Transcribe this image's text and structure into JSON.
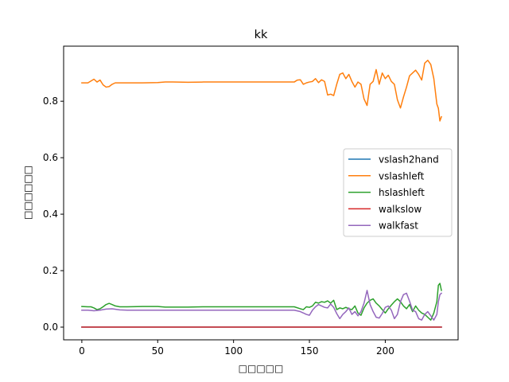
{
  "chart_data": {
    "type": "line",
    "title": "kk",
    "xlabel": "□□□□□",
    "ylabel": "□□□□□□",
    "xlim": [
      -12,
      248
    ],
    "ylim": [
      -0.045,
      0.995
    ],
    "xticks": [
      0,
      50,
      100,
      150,
      200
    ],
    "yticks": [
      0.0,
      0.2,
      0.4,
      0.6,
      0.8
    ],
    "ytick_labels": [
      "0.0",
      "0.2",
      "0.4",
      "0.6",
      "0.8"
    ],
    "legend_position": "center-right",
    "grid": false,
    "series": [
      {
        "name": "vslash2hand",
        "color": "#1f77b4",
        "x": [
          0,
          237
        ],
        "y": [
          0.0,
          0.0
        ]
      },
      {
        "name": "vslashleft",
        "color": "#ff7f0e",
        "x": [
          0,
          4,
          8,
          10,
          12,
          14,
          16,
          18,
          20,
          22,
          25,
          30,
          40,
          50,
          55,
          60,
          70,
          80,
          90,
          100,
          110,
          120,
          130,
          140,
          142,
          144,
          146,
          148,
          150,
          152,
          154,
          156,
          158,
          160,
          162,
          164,
          166,
          168,
          170,
          172,
          174,
          176,
          178,
          180,
          182,
          184,
          186,
          188,
          190,
          192,
          194,
          196,
          198,
          200,
          202,
          204,
          206,
          208,
          210,
          212,
          214,
          216,
          218,
          220,
          222,
          224,
          226,
          228,
          230,
          232,
          234,
          235,
          236,
          237
        ],
        "y": [
          0.865,
          0.865,
          0.878,
          0.868,
          0.875,
          0.858,
          0.85,
          0.852,
          0.86,
          0.865,
          0.865,
          0.865,
          0.865,
          0.866,
          0.868,
          0.868,
          0.867,
          0.868,
          0.868,
          0.868,
          0.868,
          0.868,
          0.868,
          0.868,
          0.875,
          0.876,
          0.86,
          0.865,
          0.868,
          0.87,
          0.88,
          0.866,
          0.876,
          0.87,
          0.822,
          0.825,
          0.82,
          0.86,
          0.895,
          0.9,
          0.88,
          0.895,
          0.87,
          0.85,
          0.868,
          0.86,
          0.808,
          0.785,
          0.86,
          0.87,
          0.912,
          0.86,
          0.9,
          0.88,
          0.892,
          0.87,
          0.86,
          0.805,
          0.776,
          0.815,
          0.85,
          0.89,
          0.9,
          0.91,
          0.895,
          0.875,
          0.935,
          0.945,
          0.93,
          0.88,
          0.79,
          0.775,
          0.73,
          0.745
        ]
      },
      {
        "name": "hslashleft",
        "color": "#2ca02c",
        "x": [
          0,
          4,
          6,
          8,
          10,
          12,
          14,
          16,
          18,
          20,
          22,
          25,
          30,
          40,
          50,
          55,
          60,
          70,
          80,
          90,
          100,
          110,
          120,
          130,
          140,
          144,
          146,
          148,
          150,
          152,
          154,
          156,
          158,
          160,
          162,
          164,
          166,
          168,
          170,
          172,
          174,
          176,
          178,
          180,
          182,
          184,
          186,
          188,
          190,
          192,
          194,
          196,
          198,
          200,
          202,
          204,
          206,
          208,
          210,
          212,
          214,
          216,
          218,
          220,
          222,
          224,
          226,
          228,
          230,
          232,
          234,
          235,
          236,
          237
        ],
        "y": [
          0.073,
          0.072,
          0.072,
          0.068,
          0.062,
          0.065,
          0.072,
          0.08,
          0.084,
          0.08,
          0.075,
          0.072,
          0.072,
          0.073,
          0.073,
          0.071,
          0.071,
          0.071,
          0.072,
          0.072,
          0.072,
          0.072,
          0.072,
          0.072,
          0.072,
          0.065,
          0.062,
          0.072,
          0.07,
          0.075,
          0.088,
          0.085,
          0.09,
          0.088,
          0.093,
          0.085,
          0.095,
          0.062,
          0.068,
          0.065,
          0.07,
          0.065,
          0.062,
          0.075,
          0.05,
          0.042,
          0.068,
          0.085,
          0.095,
          0.1,
          0.085,
          0.075,
          0.062,
          0.05,
          0.065,
          0.078,
          0.09,
          0.1,
          0.09,
          0.075,
          0.065,
          0.08,
          0.055,
          0.075,
          0.06,
          0.05,
          0.045,
          0.035,
          0.025,
          0.05,
          0.09,
          0.148,
          0.155,
          0.13
        ]
      },
      {
        "name": "walkslow",
        "color": "#d62728",
        "x": [
          0,
          237
        ],
        "y": [
          0.0,
          0.0
        ]
      },
      {
        "name": "walkfast",
        "color": "#9467bd",
        "x": [
          0,
          4,
          8,
          12,
          16,
          20,
          25,
          30,
          40,
          50,
          60,
          70,
          80,
          90,
          100,
          110,
          120,
          130,
          140,
          144,
          148,
          150,
          152,
          154,
          156,
          158,
          160,
          162,
          164,
          166,
          168,
          170,
          172,
          174,
          176,
          178,
          180,
          182,
          184,
          186,
          188,
          190,
          192,
          194,
          196,
          198,
          200,
          202,
          204,
          206,
          208,
          210,
          212,
          214,
          216,
          218,
          220,
          222,
          224,
          226,
          228,
          230,
          232,
          234,
          235,
          236,
          237
        ],
        "y": [
          0.06,
          0.06,
          0.058,
          0.06,
          0.064,
          0.065,
          0.061,
          0.06,
          0.06,
          0.06,
          0.06,
          0.06,
          0.06,
          0.06,
          0.06,
          0.06,
          0.06,
          0.06,
          0.06,
          0.055,
          0.045,
          0.042,
          0.06,
          0.072,
          0.08,
          0.075,
          0.07,
          0.068,
          0.082,
          0.07,
          0.048,
          0.03,
          0.045,
          0.055,
          0.068,
          0.045,
          0.055,
          0.04,
          0.055,
          0.085,
          0.13,
          0.08,
          0.055,
          0.035,
          0.032,
          0.048,
          0.07,
          0.075,
          0.06,
          0.03,
          0.045,
          0.09,
          0.115,
          0.12,
          0.092,
          0.06,
          0.055,
          0.03,
          0.025,
          0.045,
          0.055,
          0.04,
          0.025,
          0.045,
          0.09,
          0.115,
          0.12
        ]
      }
    ]
  }
}
